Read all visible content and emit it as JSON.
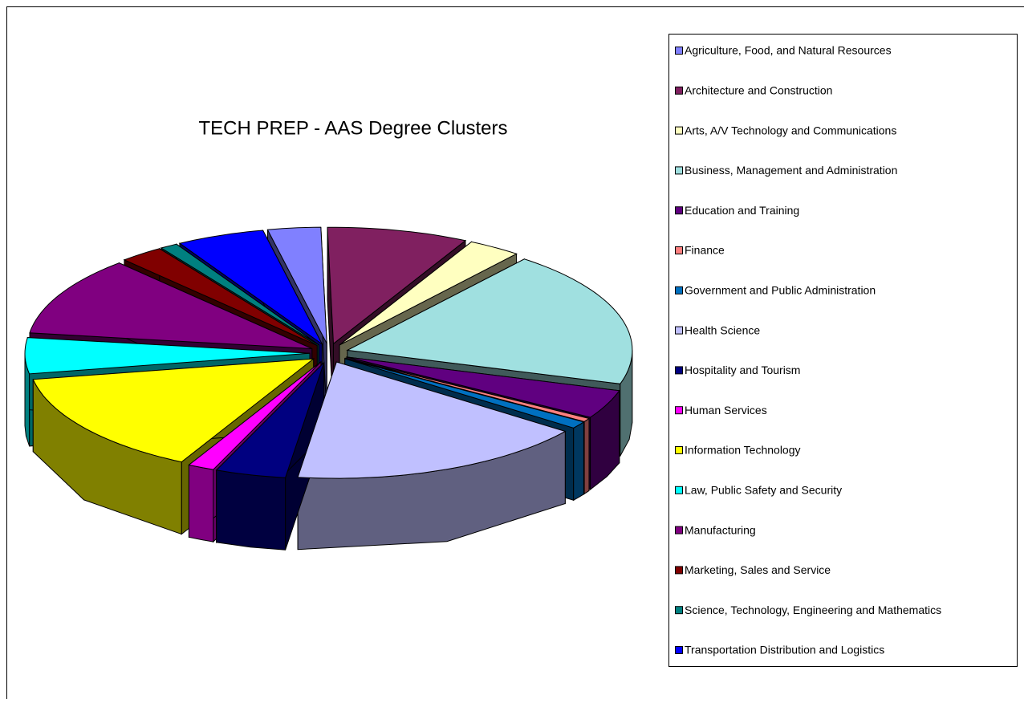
{
  "chart_data": {
    "type": "pie",
    "title": "TECH PREP - AAS Degree Clusters",
    "categories": [
      "Agriculture, Food, and Natural Resources",
      "Architecture and Construction",
      "Arts, A/V Technology and Communications",
      "Business, Management and Administration",
      "Education and Training",
      "Finance",
      "Government and Public Administration",
      "Health Science",
      "Hospitality and Tourism",
      "Human Services",
      "Information Technology",
      "Law, Public Safety and Security",
      "Manufacturing",
      "Marketing, Sales and Service",
      "Science, Technology, Engineering and Mathematics",
      "Transportation Distribution and Logistics"
    ],
    "values": [
      3,
      8,
      3,
      19,
      4,
      0.5,
      1,
      17,
      4,
      1.5,
      14.5,
      5,
      11,
      2.5,
      1,
      5
    ],
    "colors": [
      "#8080ff",
      "#802060",
      "#ffffc0",
      "#a0e0e0",
      "#600080",
      "#ff8080",
      "#0070c0",
      "#c0c0ff",
      "#000080",
      "#ff00ff",
      "#ffff00",
      "#00ffff",
      "#800080",
      "#800000",
      "#008080",
      "#0000ff"
    ],
    "legend": "right"
  }
}
